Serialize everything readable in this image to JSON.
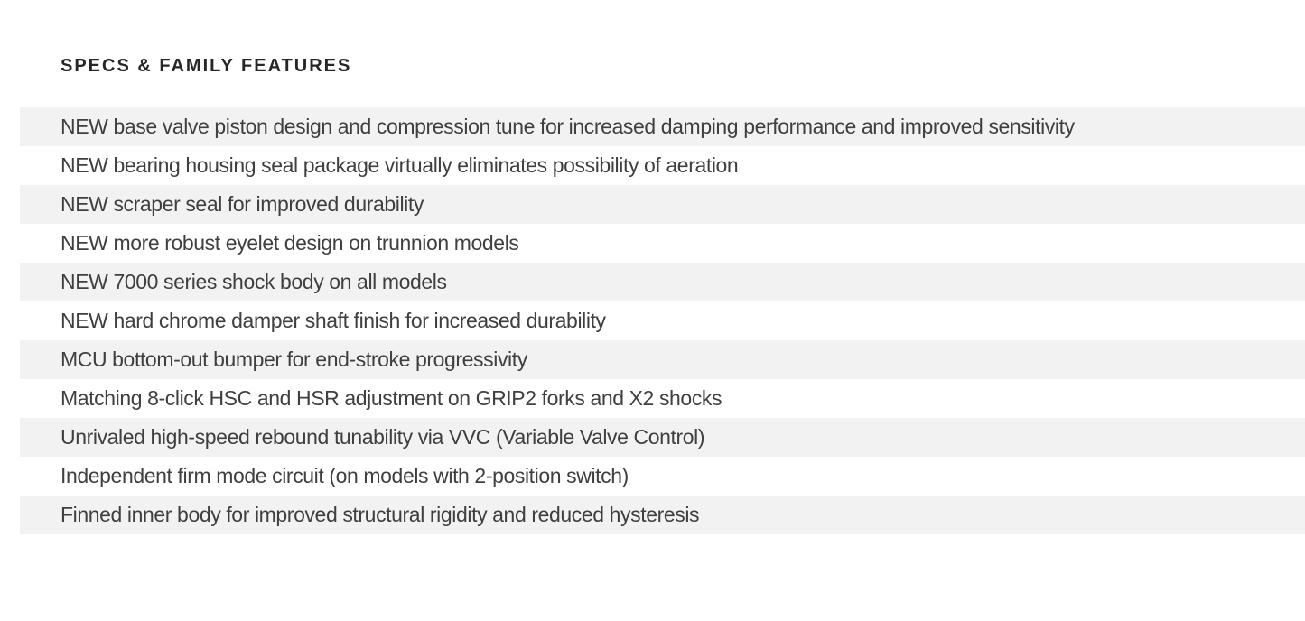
{
  "heading": "SPECS & FAMILY FEATURES",
  "features": {
    "items": [
      "NEW base valve piston design and compression tune for increased damping performance and improved sensitivity",
      "NEW bearing housing seal package virtually eliminates possibility of aeration",
      "NEW scraper seal for improved durability",
      "NEW more robust eyelet design on trunnion models",
      "NEW 7000 series shock body on all models",
      "NEW hard chrome damper shaft finish for increased durability",
      "MCU bottom-out bumper for end-stroke progressivity",
      "Matching 8-click HSC and HSR adjustment on GRIP2 forks and X2 shocks",
      "Unrivaled high-speed rebound tunability via VVC (Variable Valve Control)",
      "Independent firm mode circuit (on models with 2-position switch)",
      "Finned inner body for improved structural rigidity and reduced hysteresis"
    ]
  },
  "colors": {
    "stripe": "#f2f2f2",
    "row_text": "#3f3f3f",
    "heading_text": "#262626",
    "background": "#ffffff"
  }
}
